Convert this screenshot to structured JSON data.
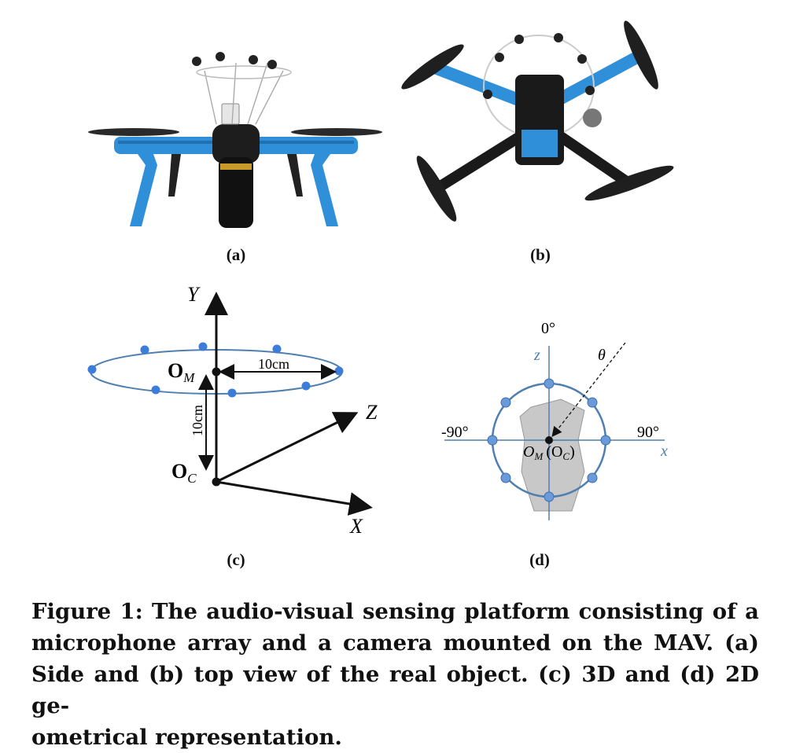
{
  "panels": {
    "a": {
      "label": "(a)"
    },
    "b": {
      "label": "(b)"
    },
    "c": {
      "label": "(c)",
      "axis_y": "Y",
      "axis_z": "Z",
      "axis_x": "X",
      "origin_mic": "O",
      "origin_mic_sub": "M",
      "origin_cam": "O",
      "origin_cam_sub": "C",
      "horizontal_distance": "10cm",
      "vertical_distance": "10cm"
    },
    "d": {
      "label": "(d)",
      "angle_top": "0°",
      "angle_left": "-90°",
      "angle_right": "90°",
      "theta": "θ",
      "axis_z": "z",
      "axis_x": "x",
      "origin": "O",
      "origin_sub": "M",
      "origin_cam_open": "(O",
      "origin_cam_sub": "C",
      "origin_cam_close": ")"
    }
  },
  "caption": {
    "line1": "Figure 1: The audio-visual sensing platform consisting of a",
    "line2": "microphone array and a camera mounted on the MAV. (a)",
    "line3": "Side and (b) top view of the real object. (c) 3D and (d) 2D ge-",
    "line4": "ometrical representation."
  },
  "colors": {
    "accent_blue": "#2f8fd8",
    "diagram_blue": "#4f7fb0",
    "mic_dot": "#3b7dd8",
    "head_gray": "#c8c8c8"
  }
}
